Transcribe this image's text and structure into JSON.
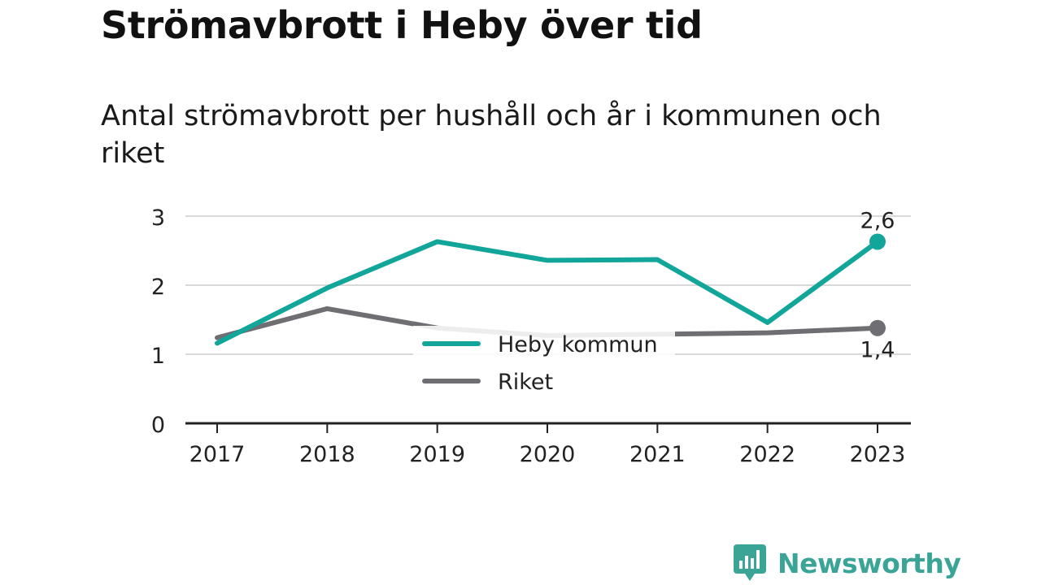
{
  "header": {
    "title": "Strömavbrott i Heby över tid",
    "subtitle": "Antal strömavbrott per hushåll och år i kommunen och riket"
  },
  "colors": {
    "heby": "#12a59a",
    "riket": "#6f6e73",
    "grid": "#d9d9d9",
    "axis": "#222222",
    "brand": "#3aa597"
  },
  "chart_data": {
    "type": "line",
    "x": [
      "2017",
      "2018",
      "2019",
      "2020",
      "2021",
      "2022",
      "2023"
    ],
    "ylim": [
      0,
      3
    ],
    "yticks": [
      "0",
      "1",
      "2",
      "3"
    ],
    "grid": true,
    "legend_position": "center",
    "series": [
      {
        "name": "Heby kommun",
        "values": [
          1.16,
          1.96,
          2.63,
          2.36,
          2.37,
          1.46,
          2.63
        ],
        "end_label": "2,6"
      },
      {
        "name": "Riket",
        "values": [
          1.24,
          1.66,
          1.38,
          1.27,
          1.29,
          1.31,
          1.38
        ],
        "end_label": "1,4"
      }
    ]
  },
  "branding": {
    "name": "Newsworthy",
    "icon": "bar-chart-speech-bubble-icon"
  }
}
